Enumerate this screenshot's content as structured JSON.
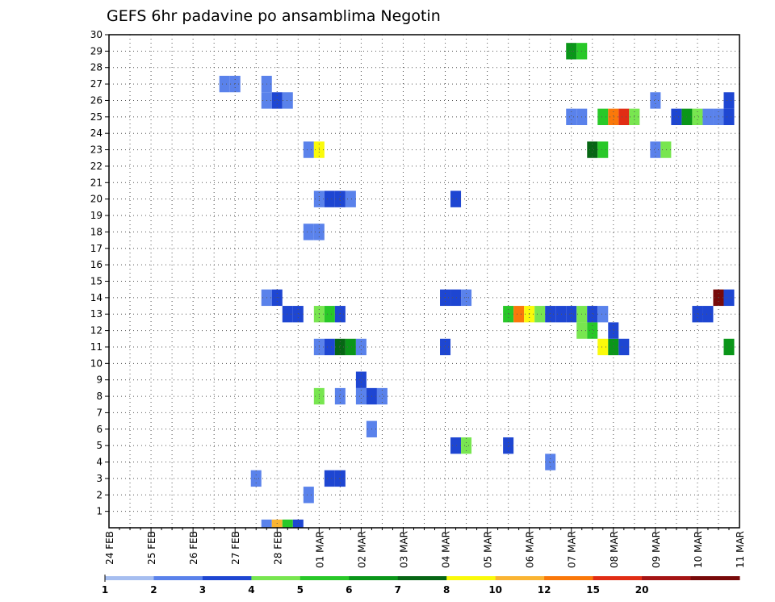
{
  "chart_data": {
    "type": "heatmap",
    "title": "GEFS 6hr padavine po ansamblima Negotin",
    "xlabel": "",
    "ylabel": "",
    "y_ticks": [
      1,
      2,
      3,
      4,
      5,
      6,
      7,
      8,
      9,
      10,
      11,
      12,
      13,
      14,
      15,
      16,
      17,
      18,
      19,
      20,
      21,
      22,
      23,
      24,
      25,
      26,
      27,
      28,
      29,
      30
    ],
    "y_range": [
      0,
      30
    ],
    "x_tick_labels": [
      "24 FEB",
      "25 FEB",
      "26 FEB",
      "27 FEB",
      "28 FEB",
      "01 MAR",
      "02 MAR",
      "03 MAR",
      "04 MAR",
      "05 MAR",
      "06 MAR",
      "07 MAR",
      "08 MAR",
      "09 MAR",
      "10 MAR",
      "11 MAR"
    ],
    "x_unit": "6-hour step",
    "x_range": [
      0,
      60
    ],
    "grid": true,
    "colorbar": {
      "labels": [
        "1",
        "2",
        "3",
        "4",
        "5",
        "6",
        "7",
        "8",
        "10",
        "12",
        "15",
        "20"
      ],
      "colors": [
        "#a6bef0",
        "#5a82eb",
        "#1e46d2",
        "#78e650",
        "#28c828",
        "#0a9619",
        "#066614",
        "#fafa0a",
        "#fab432",
        "#fa780a",
        "#e12d14",
        "#a51414",
        "#780a0a"
      ]
    },
    "cells": [
      {
        "t": 19,
        "m": 1,
        "v": 1
      },
      {
        "t": 14,
        "m": 2,
        "v": 1
      },
      {
        "t": 21,
        "m": 2,
        "v": 2
      },
      {
        "t": 22,
        "m": 2,
        "v": 2
      },
      {
        "t": 42,
        "m": 3,
        "v": 1
      },
      {
        "t": 33,
        "m": 4,
        "v": 2
      },
      {
        "t": 34,
        "m": 4,
        "v": 3
      },
      {
        "t": 38,
        "m": 4,
        "v": 2
      },
      {
        "t": 25,
        "m": 5,
        "v": 1
      },
      {
        "t": 20,
        "m": 7,
        "v": 3
      },
      {
        "t": 22,
        "m": 7,
        "v": 1
      },
      {
        "t": 24,
        "m": 7,
        "v": 1
      },
      {
        "t": 25,
        "m": 7,
        "v": 2
      },
      {
        "t": 26,
        "m": 7,
        "v": 1
      },
      {
        "t": 24,
        "m": 8,
        "v": 2
      },
      {
        "t": 20,
        "m": 10,
        "v": 1
      },
      {
        "t": 21,
        "m": 10,
        "v": 2
      },
      {
        "t": 22,
        "m": 10,
        "v": 6
      },
      {
        "t": 23,
        "m": 10,
        "v": 5
      },
      {
        "t": 24,
        "m": 10,
        "v": 1
      },
      {
        "t": 32,
        "m": 10,
        "v": 2
      },
      {
        "t": 47,
        "m": 10,
        "v": 7
      },
      {
        "t": 48,
        "m": 10,
        "v": 5
      },
      {
        "t": 49,
        "m": 10,
        "v": 2
      },
      {
        "t": 59,
        "m": 10,
        "v": 5
      },
      {
        "t": 45,
        "m": 11,
        "v": 3
      },
      {
        "t": 46,
        "m": 11,
        "v": 4
      },
      {
        "t": 48,
        "m": 11,
        "v": 2
      },
      {
        "t": 17,
        "m": 12,
        "v": 2
      },
      {
        "t": 18,
        "m": 12,
        "v": 2
      },
      {
        "t": 20,
        "m": 12,
        "v": 3
      },
      {
        "t": 21,
        "m": 12,
        "v": 4
      },
      {
        "t": 22,
        "m": 12,
        "v": 2
      },
      {
        "t": 38,
        "m": 12,
        "v": 4
      },
      {
        "t": 39,
        "m": 12,
        "v": 9
      },
      {
        "t": 40,
        "m": 12,
        "v": 7
      },
      {
        "t": 41,
        "m": 12,
        "v": 3
      },
      {
        "t": 42,
        "m": 12,
        "v": 2
      },
      {
        "t": 43,
        "m": 12,
        "v": 2
      },
      {
        "t": 44,
        "m": 12,
        "v": 2
      },
      {
        "t": 45,
        "m": 12,
        "v": 3
      },
      {
        "t": 46,
        "m": 12,
        "v": 2
      },
      {
        "t": 47,
        "m": 12,
        "v": 1
      },
      {
        "t": 56,
        "m": 12,
        "v": 2
      },
      {
        "t": 57,
        "m": 12,
        "v": 2
      },
      {
        "t": 15,
        "m": 13,
        "v": 1
      },
      {
        "t": 16,
        "m": 13,
        "v": 2
      },
      {
        "t": 32,
        "m": 13,
        "v": 2
      },
      {
        "t": 33,
        "m": 13,
        "v": 2
      },
      {
        "t": 34,
        "m": 13,
        "v": 1
      },
      {
        "t": 58,
        "m": 13,
        "v": 12
      },
      {
        "t": 59,
        "m": 13,
        "v": 2
      },
      {
        "t": 19,
        "m": 17,
        "v": 1
      },
      {
        "t": 20,
        "m": 17,
        "v": 1
      },
      {
        "t": 20,
        "m": 19,
        "v": 1
      },
      {
        "t": 21,
        "m": 19,
        "v": 2
      },
      {
        "t": 22,
        "m": 19,
        "v": 2
      },
      {
        "t": 23,
        "m": 19,
        "v": 1
      },
      {
        "t": 33,
        "m": 19,
        "v": 2
      },
      {
        "t": 19,
        "m": 22,
        "v": 1
      },
      {
        "t": 20,
        "m": 22,
        "v": 7
      },
      {
        "t": 46,
        "m": 22,
        "v": 6
      },
      {
        "t": 47,
        "m": 22,
        "v": 4
      },
      {
        "t": 52,
        "m": 22,
        "v": 1
      },
      {
        "t": 53,
        "m": 22,
        "v": 3
      },
      {
        "t": 44,
        "m": 24,
        "v": 1
      },
      {
        "t": 45,
        "m": 24,
        "v": 1
      },
      {
        "t": 47,
        "m": 24,
        "v": 4
      },
      {
        "t": 48,
        "m": 24,
        "v": 9
      },
      {
        "t": 49,
        "m": 24,
        "v": 10
      },
      {
        "t": 50,
        "m": 24,
        "v": 3
      },
      {
        "t": 54,
        "m": 24,
        "v": 2
      },
      {
        "t": 55,
        "m": 24,
        "v": 5
      },
      {
        "t": 56,
        "m": 24,
        "v": 3
      },
      {
        "t": 57,
        "m": 24,
        "v": 1
      },
      {
        "t": 58,
        "m": 24,
        "v": 1
      },
      {
        "t": 59,
        "m": 24,
        "v": 2
      },
      {
        "t": 15,
        "m": 25,
        "v": 1
      },
      {
        "t": 16,
        "m": 25,
        "v": 2
      },
      {
        "t": 17,
        "m": 25,
        "v": 1
      },
      {
        "t": 52,
        "m": 25,
        "v": 1
      },
      {
        "t": 59,
        "m": 25,
        "v": 2
      },
      {
        "t": 11,
        "m": 26,
        "v": 1
      },
      {
        "t": 12,
        "m": 26,
        "v": 1
      },
      {
        "t": 15,
        "m": 26,
        "v": 1
      },
      {
        "t": 44,
        "m": 28,
        "v": 5
      },
      {
        "t": 45,
        "m": 28,
        "v": 4
      },
      {
        "t": 15,
        "m": -1,
        "v": 1
      },
      {
        "t": 16,
        "m": -1,
        "v": 8
      },
      {
        "t": 17,
        "m": -1,
        "v": 4
      },
      {
        "t": 18,
        "m": -1,
        "v": 2
      }
    ]
  }
}
